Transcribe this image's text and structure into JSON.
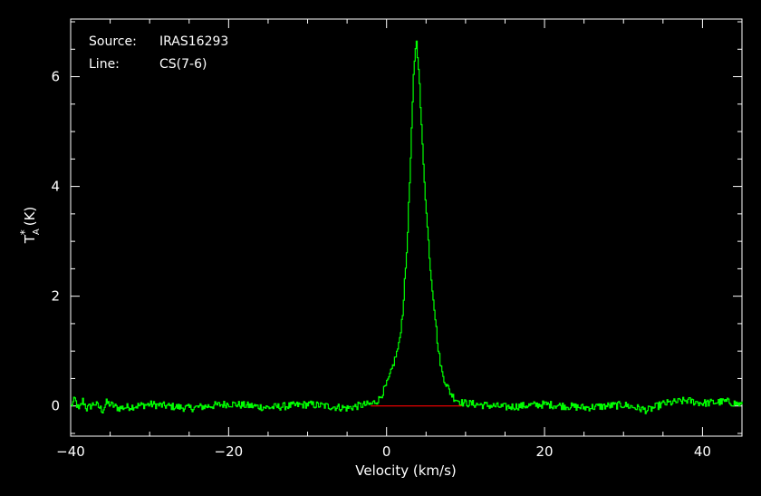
{
  "chart_data": {
    "type": "line",
    "info": {
      "source_label": "Source:",
      "source_value": "IRAS16293",
      "line_label": "Line:",
      "line_value": "CS(7-6)"
    },
    "xlabel": "Velocity (km/s)",
    "ylabel_main": "T",
    "ylabel_sup": "*",
    "ylabel_sub": "A",
    "ylabel_unit": "(K)",
    "xlim": [
      -40,
      45
    ],
    "ylim": [
      -0.55,
      7.05
    ],
    "x_ticks": [
      -40,
      -20,
      0,
      20,
      40
    ],
    "y_ticks": [
      0,
      2,
      4,
      6
    ],
    "x_tick_labels": [
      "−40",
      "−20",
      "0",
      "20",
      "40"
    ],
    "y_tick_labels": [
      "0",
      "2",
      "4",
      "6"
    ],
    "grid": false,
    "colors": {
      "background": "#000000",
      "frame": "#ffffff",
      "spectrum": "#00ff00",
      "baseline": "#ff0000"
    },
    "baseline_segment": {
      "x": [
        -2,
        9.5
      ],
      "y": 0
    },
    "series": [
      {
        "profile_points": [
          [
            -40,
            0.0
          ],
          [
            -39.5,
            0.12
          ],
          [
            -39.0,
            -0.08
          ],
          [
            -38.5,
            0.1
          ],
          [
            -38.0,
            -0.05
          ],
          [
            -37.0,
            0.05
          ],
          [
            -36.0,
            -0.08
          ],
          [
            -35.5,
            0.06
          ],
          [
            -34.0,
            -0.04
          ],
          [
            -30.0,
            0.03
          ],
          [
            -25.0,
            -0.04
          ],
          [
            -20.0,
            0.04
          ],
          [
            -15.0,
            -0.03
          ],
          [
            -10.0,
            0.03
          ],
          [
            -5.0,
            -0.04
          ],
          [
            -3.0,
            0.02
          ],
          [
            -2.0,
            0.03
          ],
          [
            -1.0,
            0.12
          ],
          [
            -0.5,
            0.25
          ],
          [
            0.0,
            0.4
          ],
          [
            0.5,
            0.6
          ],
          [
            1.0,
            0.85
          ],
          [
            1.5,
            1.1
          ],
          [
            2.0,
            1.7
          ],
          [
            2.5,
            2.8
          ],
          [
            3.0,
            4.5
          ],
          [
            3.4,
            6.1
          ],
          [
            3.7,
            6.7
          ],
          [
            4.0,
            6.2
          ],
          [
            4.4,
            5.0
          ],
          [
            5.0,
            3.5
          ],
          [
            5.5,
            2.5
          ],
          [
            6.0,
            1.8
          ],
          [
            6.5,
            1.0
          ],
          [
            7.0,
            0.6
          ],
          [
            7.5,
            0.4
          ],
          [
            8.0,
            0.25
          ],
          [
            8.5,
            0.15
          ],
          [
            9.0,
            0.1
          ],
          [
            9.5,
            0.06
          ],
          [
            10.0,
            0.05
          ],
          [
            12.0,
            0.02
          ],
          [
            15.0,
            -0.02
          ],
          [
            20.0,
            0.03
          ],
          [
            25.0,
            -0.03
          ],
          [
            30.0,
            0.02
          ],
          [
            33.0,
            -0.08
          ],
          [
            35.0,
            0.04
          ],
          [
            38.0,
            0.1
          ],
          [
            40.0,
            0.05
          ],
          [
            43.0,
            0.08
          ],
          [
            45.0,
            0.02
          ]
        ]
      }
    ]
  }
}
